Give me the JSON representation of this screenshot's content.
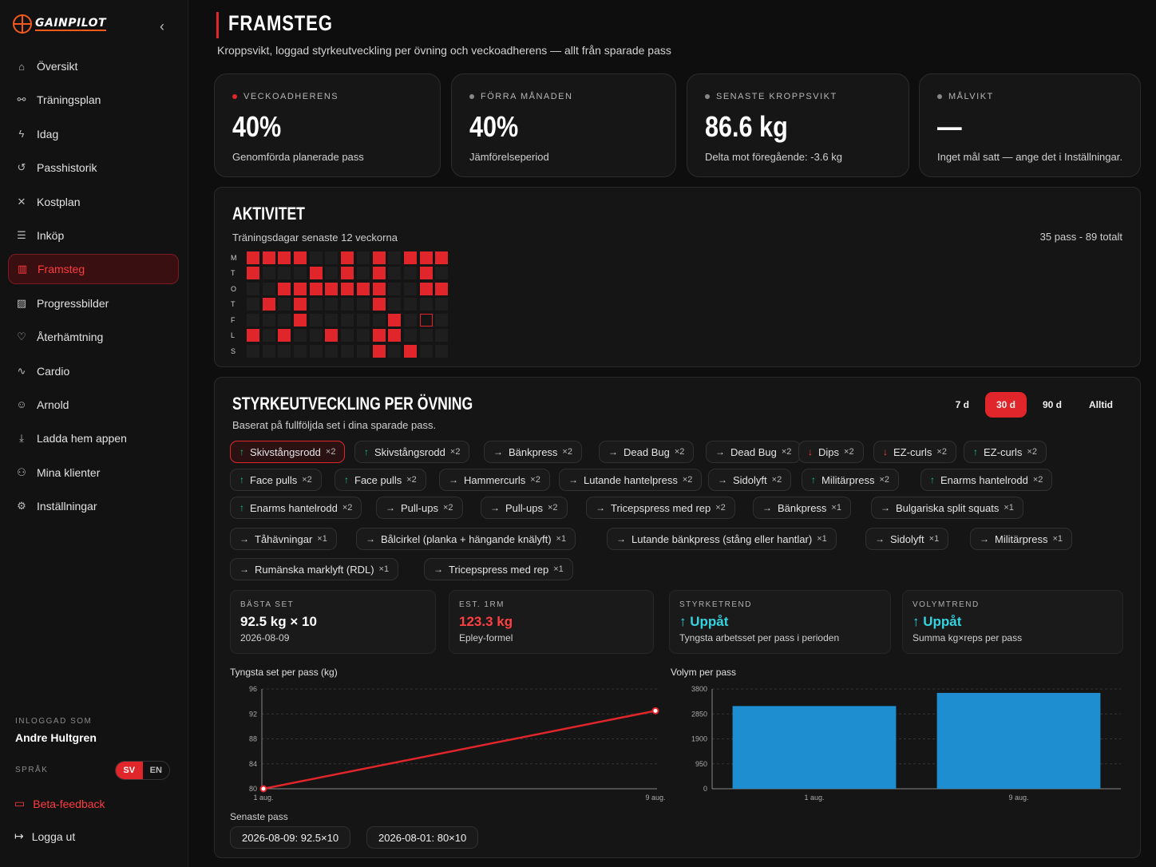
{
  "app": {
    "logo_text": "GAINPILOT"
  },
  "sidebar": {
    "items": [
      {
        "label": "Översikt",
        "icon": "home-icon",
        "glyph": "⌂"
      },
      {
        "label": "Träningsplan",
        "icon": "plan-icon",
        "glyph": "⚯"
      },
      {
        "label": "Idag",
        "icon": "bolt-icon",
        "glyph": "ϟ"
      },
      {
        "label": "Passhistorik",
        "icon": "history-icon",
        "glyph": "↺"
      },
      {
        "label": "Kostplan",
        "icon": "utensils-icon",
        "glyph": "✕"
      },
      {
        "label": "Inköp",
        "icon": "list-icon",
        "glyph": "☰"
      },
      {
        "label": "Framsteg",
        "icon": "chart-icon",
        "glyph": "▥"
      },
      {
        "label": "Progressbilder",
        "icon": "image-icon",
        "glyph": "▨"
      },
      {
        "label": "Återhämtning",
        "icon": "heart-icon",
        "glyph": "♡"
      },
      {
        "label": "Cardio",
        "icon": "pulse-icon",
        "glyph": "∿"
      },
      {
        "label": "Arnold",
        "icon": "bot-icon",
        "glyph": "☺"
      },
      {
        "label": "Ladda hem appen",
        "icon": "download-icon",
        "glyph": "⤓"
      },
      {
        "label": "Mina klienter",
        "icon": "users-icon",
        "glyph": "⚇"
      },
      {
        "label": "Inställningar",
        "icon": "gear-icon",
        "glyph": "⚙"
      }
    ],
    "active_index": 6,
    "user_label": "INLOGGAD SOM",
    "user_name": "Andre Hultgren",
    "lang_label": "SPRÅK",
    "lang_sv": "SV",
    "lang_en": "EN",
    "beta": "Beta-feedback",
    "logout": "Logga ut"
  },
  "header": {
    "title": "FRAMSTEG",
    "subtitle": "Kroppsvikt, loggad styrkeutveckling per övning och veckoadherens — allt från sparade pass"
  },
  "stats": [
    {
      "label": "VECKOADHERENS",
      "value": "40%",
      "desc": "Genomförda planerade pass",
      "dot": "red"
    },
    {
      "label": "FÖRRA MÅNADEN",
      "value": "40%",
      "desc": "Jämförelseperiod",
      "dot": "gray"
    },
    {
      "label": "SENASTE KROPPSVIKT",
      "value": "86.6 kg",
      "desc": "Delta mot föregående: -3.6 kg",
      "dot": "gray"
    },
    {
      "label": "MÅLVIKT",
      "value": "—",
      "desc": "Inget mål satt — ange det i Inställningar.",
      "dot": "gray"
    }
  ],
  "activity": {
    "title": "AKTIVITET",
    "subtitle": "Träningsdagar senaste 12 veckorna",
    "total": "35 pass - 89 totalt",
    "days": [
      "M",
      "T",
      "O",
      "T",
      "F",
      "L",
      "S"
    ],
    "grid": [
      [
        1,
        1,
        1,
        1,
        0,
        0,
        1,
        0,
        1,
        0,
        1,
        1,
        1
      ],
      [
        1,
        0,
        0,
        0,
        1,
        0,
        1,
        0,
        1,
        0,
        0,
        1,
        0
      ],
      [
        0,
        0,
        1,
        1,
        1,
        1,
        1,
        1,
        1,
        0,
        0,
        1,
        1
      ],
      [
        0,
        1,
        0,
        1,
        0,
        0,
        0,
        0,
        1,
        0,
        0,
        0,
        0
      ],
      [
        0,
        0,
        0,
        1,
        0,
        0,
        0,
        0,
        0,
        1,
        0,
        2,
        0
      ],
      [
        1,
        0,
        1,
        0,
        0,
        1,
        0,
        0,
        1,
        1,
        0,
        0,
        0
      ],
      [
        0,
        0,
        0,
        0,
        0,
        0,
        0,
        0,
        1,
        0,
        1,
        0,
        0
      ]
    ]
  },
  "strength": {
    "title": "STYRKEUTVECKLING PER ÖVNING",
    "subtitle": "Baserat på fullföljda set i dina sparade pass.",
    "ranges": [
      "7 d",
      "30 d",
      "90 d",
      "Alltid"
    ],
    "active_range": 1,
    "chips": [
      {
        "label": "Skivstångsrodd",
        "mult": "×2",
        "trend": "up",
        "active": true
      },
      {
        "label": "Skivstångsrodd",
        "mult": "×2",
        "trend": "up"
      },
      {
        "label": "Bänkpress",
        "mult": "×2",
        "trend": "flat"
      },
      {
        "label": "Dead Bug",
        "mult": "×2",
        "trend": "flat"
      },
      {
        "label": "Dead Bug",
        "mult": "×2",
        "trend": "flat"
      },
      {
        "label": "Dips",
        "mult": "×2",
        "trend": "down"
      },
      {
        "label": "EZ-curls",
        "mult": "×2",
        "trend": "down"
      },
      {
        "label": "EZ-curls",
        "mult": "×2",
        "trend": "up"
      },
      {
        "label": "Face pulls",
        "mult": "×2",
        "trend": "up"
      },
      {
        "label": "Face pulls",
        "mult": "×2",
        "trend": "up"
      },
      {
        "label": "Hammercurls",
        "mult": "×2",
        "trend": "flat"
      },
      {
        "label": "Lutande hantelpress",
        "mult": "×2",
        "trend": "flat"
      },
      {
        "label": "Sidolyft",
        "mult": "×2",
        "trend": "flat"
      },
      {
        "label": "Militärpress",
        "mult": "×2",
        "trend": "up"
      },
      {
        "label": "Enarms hantelrodd",
        "mult": "×2",
        "trend": "up"
      },
      {
        "label": "Enarms hantelrodd",
        "mult": "×2",
        "trend": "up"
      },
      {
        "label": "Pull-ups",
        "mult": "×2",
        "trend": "flat"
      },
      {
        "label": "Pull-ups",
        "mult": "×2",
        "trend": "flat"
      },
      {
        "label": "Tricepspress med rep",
        "mult": "×2",
        "trend": "flat"
      },
      {
        "label": "Bänkpress",
        "mult": "×1",
        "trend": "flat"
      },
      {
        "label": "Bulgariska split squats",
        "mult": "×1",
        "trend": "flat"
      },
      {
        "label": "Tåhävningar",
        "mult": "×1",
        "trend": "flat"
      },
      {
        "label": "Bålcirkel (planka + hängande knälyft)",
        "mult": "×1",
        "trend": "flat"
      },
      {
        "label": "Lutande bänkpress (stång eller hantlar)",
        "mult": "×1",
        "trend": "flat"
      },
      {
        "label": "Sidolyft",
        "mult": "×1",
        "trend": "flat"
      },
      {
        "label": "Militärpress",
        "mult": "×1",
        "trend": "flat"
      },
      {
        "label": "Rumänska marklyft (RDL)",
        "mult": "×1",
        "trend": "flat"
      },
      {
        "label": "Tricepspress med rep",
        "mult": "×1",
        "trend": "flat"
      }
    ],
    "metrics": [
      {
        "label": "BÄSTA SET",
        "value": "92.5 kg × 10",
        "desc": "2026-08-09",
        "style": "white"
      },
      {
        "label": "EST. 1RM",
        "value": "123.3 kg",
        "desc": "Epley-formel",
        "style": "red"
      },
      {
        "label": "STYRKETREND",
        "value": "↑ Uppåt",
        "desc": "Tyngsta arbetsset per pass i perioden",
        "style": "cyan"
      },
      {
        "label": "VOLYMTREND",
        "value": "↑ Uppåt",
        "desc": "Summa kg×reps per pass",
        "style": "cyan"
      }
    ],
    "recent_label": "Senaste pass",
    "recent": [
      "2026-08-09: 92.5×10",
      "2026-08-01: 80×10"
    ]
  },
  "colors": {
    "accent": "#e0262b",
    "bar": "#1e8ed1",
    "up": "#19c37d",
    "down": "#ff4040"
  },
  "chart_data": [
    {
      "type": "line",
      "title": "Tyngsta set per pass (kg)",
      "x": [
        "1 aug.",
        "9 aug."
      ],
      "series": [
        {
          "values": [
            80,
            92.5
          ]
        }
      ],
      "yticks": [
        80,
        84,
        88,
        92,
        96
      ],
      "ylim": [
        80,
        96
      ],
      "grid": true
    },
    {
      "type": "bar",
      "title": "Volym per pass",
      "categories": [
        "1 aug.",
        "9 aug."
      ],
      "values": [
        3150,
        3650
      ],
      "yticks": [
        0,
        950,
        1900,
        2850,
        3800
      ],
      "ylim": [
        0,
        3800
      ],
      "grid": true
    }
  ]
}
